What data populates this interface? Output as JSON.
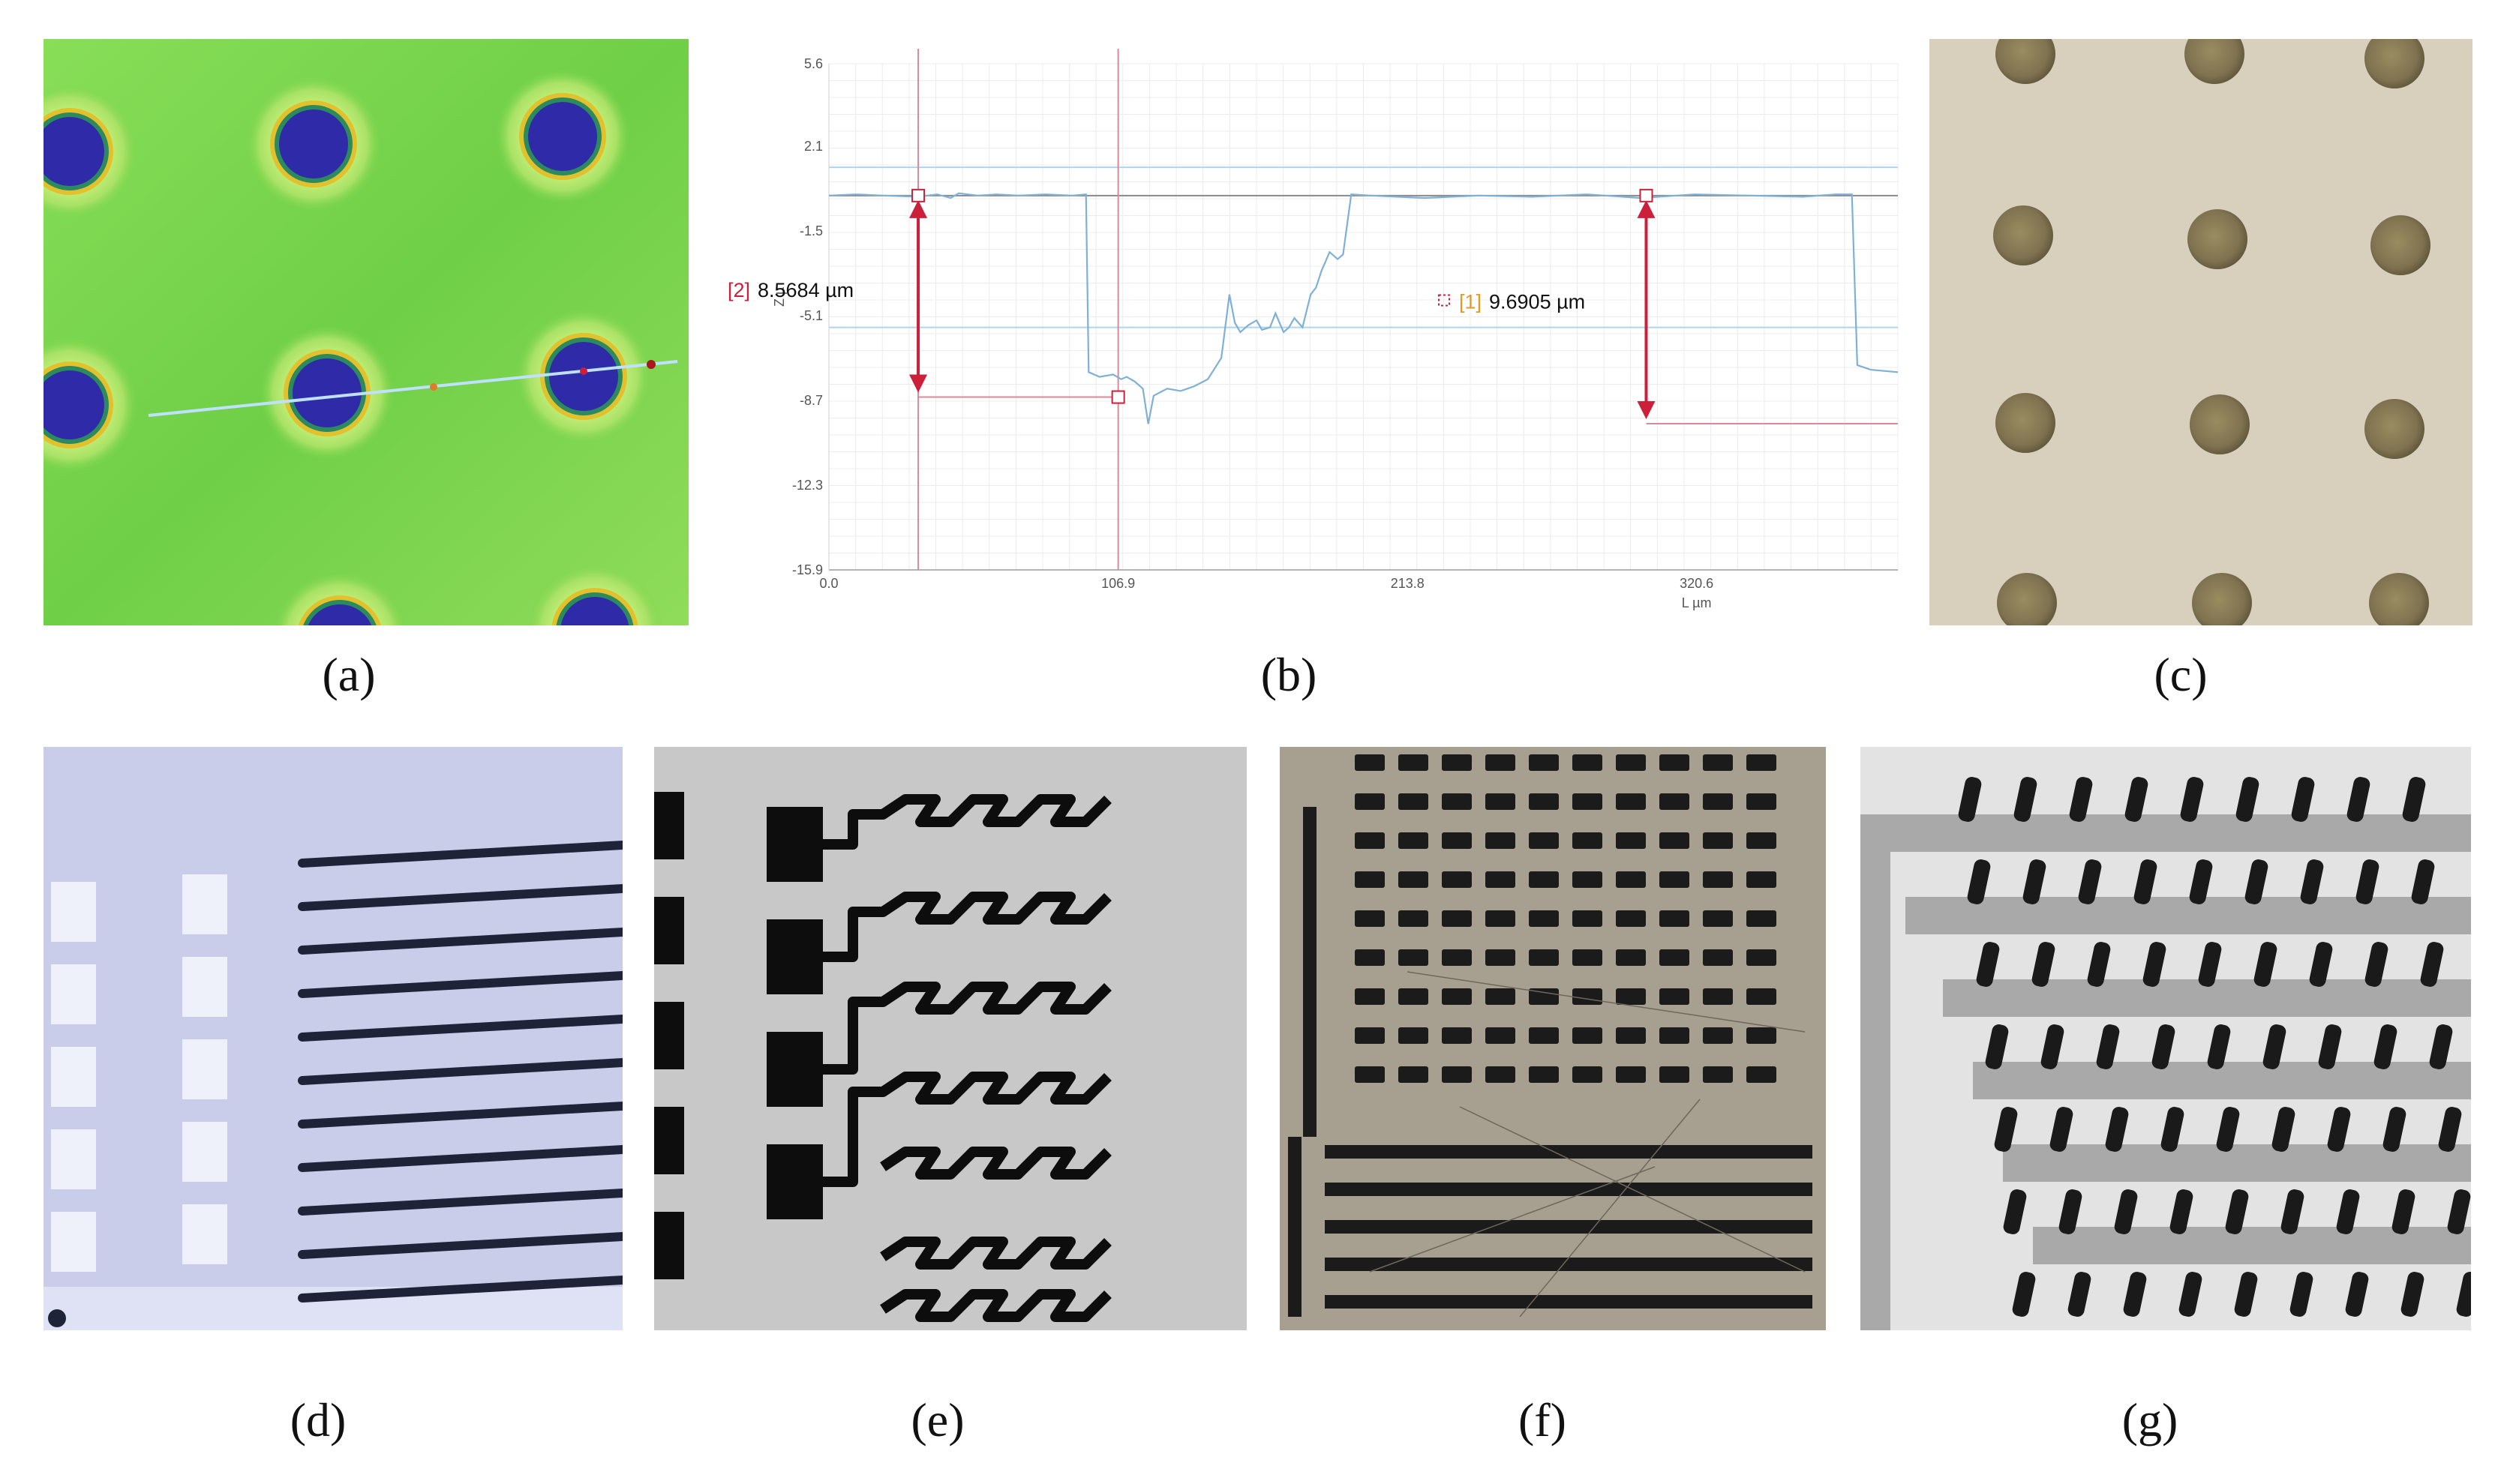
{
  "captions": {
    "a": "(a)",
    "b": "(b)",
    "c": "(c)",
    "d": "(d)",
    "e": "(e)",
    "f": "(f)",
    "g": "(g)"
  },
  "colors": {
    "heightmap_green": "#7ed64a",
    "pit_blue": "#2f2aa8",
    "profile_line": "#8ab6d6",
    "marker_red": "#cc1f3a",
    "tag_orange": "#e69a1c",
    "beige_bg": "#d8cfbc",
    "dot_brown": "#8a7a55",
    "wafer_lavender": "#c9cde9",
    "trace_dark": "#1e2338"
  },
  "chart_data": {
    "type": "line",
    "title": "",
    "xlabel": "L µm",
    "ylabel": "Z µ",
    "xlim": [
      0.0,
      395
    ],
    "ylim": [
      -15.9,
      5.6
    ],
    "x_ticks": [
      "0.0",
      "106.9",
      "213.8",
      "320.6"
    ],
    "x_tick_values": [
      0.0,
      106.9,
      213.8,
      320.6
    ],
    "y_ticks": [
      "5.6",
      "2.1",
      "-1.5",
      "-5.1",
      "-8.7",
      "-12.3",
      "-15.9"
    ],
    "y_tick_values": [
      5.6,
      2.1,
      -1.5,
      -5.1,
      -8.7,
      -12.3,
      -15.9
    ],
    "grid": true,
    "series": [
      {
        "name": "",
        "x": [
          0,
          10,
          20,
          33,
          40,
          45,
          48,
          55,
          62,
          70,
          80,
          90,
          95,
          96,
          100,
          105,
          108,
          110,
          113,
          116,
          118,
          120,
          125,
          130,
          135,
          140,
          145,
          148,
          150,
          152,
          155,
          158,
          160,
          163,
          165,
          168,
          170,
          172,
          175,
          178,
          180,
          182,
          185,
          188,
          190,
          193,
          200,
          220,
          240,
          260,
          280,
          300,
          320,
          340,
          360,
          372,
          378,
          380,
          385,
          395
        ],
        "y": [
          0.0,
          0.05,
          0.0,
          -0.05,
          0.05,
          -0.1,
          0.1,
          0.0,
          0.05,
          0.0,
          0.05,
          0.0,
          0.05,
          -7.5,
          -7.7,
          -7.6,
          -7.8,
          -7.7,
          -7.9,
          -8.2,
          -9.7,
          -8.5,
          -8.2,
          -8.3,
          -8.1,
          -7.8,
          -6.9,
          -4.2,
          -5.4,
          -5.8,
          -5.5,
          -5.3,
          -5.7,
          -5.6,
          -5.0,
          -5.8,
          -5.6,
          -5.2,
          -5.6,
          -4.2,
          -3.9,
          -3.2,
          -2.4,
          -2.7,
          -2.5,
          0.05,
          0.0,
          -0.1,
          0.0,
          -0.05,
          0.05,
          -0.1,
          0.05,
          0.0,
          -0.05,
          0.05,
          0.05,
          -7.2,
          -7.4,
          -7.5
        ]
      }
    ],
    "reference_lines_y": [
      1.2,
      0.0,
      -5.6
    ],
    "cursor_lines_x": [
      33,
      106.9
    ],
    "measurements": [
      {
        "tag": "[2]",
        "label": "8.5684 µm",
        "x": 33,
        "y_top": 0.0,
        "y_bottom": -8.56
      },
      {
        "tag": "[1]",
        "label": "9.6905 µm",
        "x": 302,
        "y_top": 0.0,
        "y_bottom": -9.69
      }
    ]
  }
}
